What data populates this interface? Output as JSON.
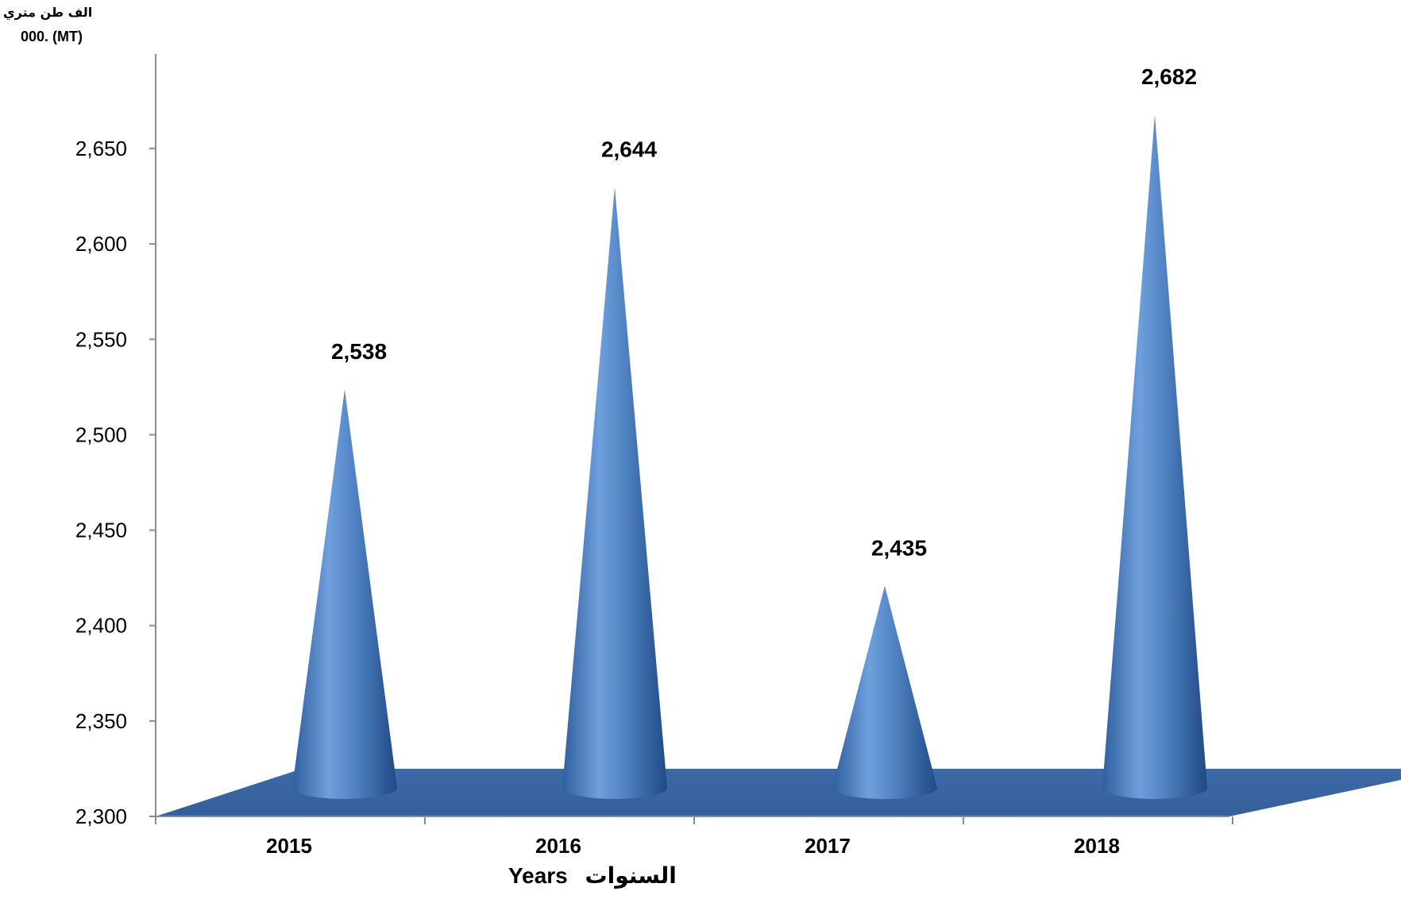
{
  "chart_data": {
    "type": "bar",
    "y_axis_title_ar": "الف طن متري",
    "y_axis_title_en": "000. (MT)",
    "xlabel_en": "Years",
    "xlabel_ar": "السنوات",
    "categories": [
      "2015",
      "2016",
      "2017",
      "2018"
    ],
    "values": [
      2538,
      2644,
      2435,
      2682
    ],
    "data_labels": [
      "2,538",
      "2,644",
      "2,435",
      "2,682"
    ],
    "y_ticks": [
      2300,
      2350,
      2400,
      2450,
      2500,
      2550,
      2600,
      2650
    ],
    "y_tick_labels": [
      "2,300",
      "2,350",
      "2,400",
      "2,450",
      "2,500",
      "2,550",
      "2,600",
      "2,650"
    ],
    "ylim": [
      2300,
      2650
    ],
    "grid": false,
    "legend": "none",
    "colors": {
      "cone": "#4f81bd",
      "floor": "#3f6fae",
      "axis": "#8c8c8c"
    }
  }
}
